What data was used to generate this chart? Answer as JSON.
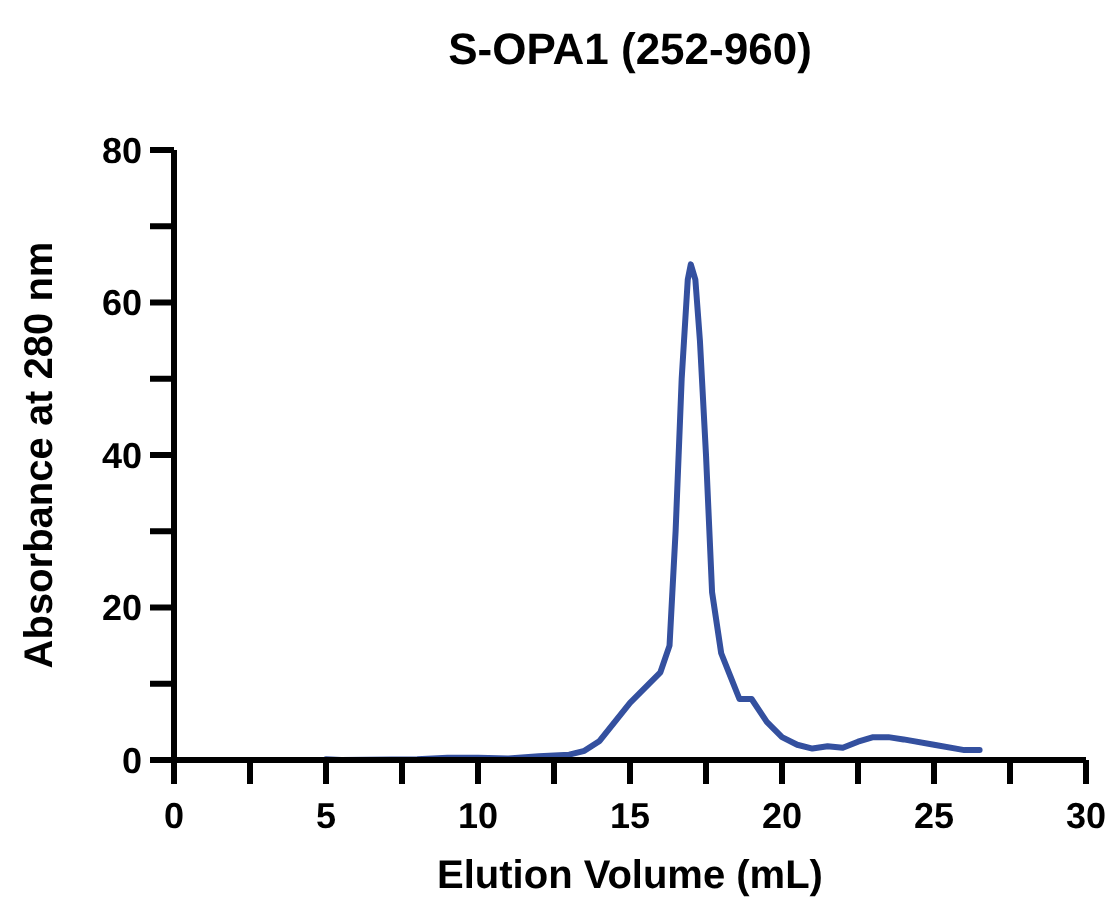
{
  "chart_data": {
    "type": "line",
    "title": "S-OPA1 (252-960)",
    "xlabel": "Elution Volume (mL)",
    "ylabel": "Absorbance at 280 nm",
    "xlim": [
      0,
      30
    ],
    "xticks": [
      0,
      {
        "value": 2.5,
        "label": null
      },
      5,
      {
        "value": 7.5,
        "label": null
      },
      10,
      {
        "value": 12.5,
        "label": null
      },
      15,
      {
        "value": 17.5,
        "label": null
      },
      20,
      {
        "value": 22.5,
        "label": null
      },
      25,
      {
        "value": 27.5,
        "label": null
      },
      30
    ],
    "ylim": [
      0,
      80
    ],
    "yticks": [
      0,
      {
        "value": 10,
        "label": null
      },
      20,
      {
        "value": 30,
        "label": null
      },
      40,
      {
        "value": 50,
        "label": null
      },
      60,
      {
        "value": 70,
        "label": null
      },
      80
    ],
    "grid": false,
    "marker": "none",
    "line_style": "solid",
    "series": [
      {
        "color": "#34509f",
        "x": [
          5,
          5.5,
          8,
          9,
          10,
          11,
          12,
          13,
          13.5,
          14,
          14.5,
          15,
          15.5,
          16,
          16.3,
          16.5,
          16.7,
          16.9,
          17,
          17.15,
          17.3,
          17.5,
          17.7,
          18,
          18.3,
          18.6,
          19,
          19.5,
          20,
          20.5,
          21,
          21.5,
          22,
          22.5,
          23,
          23.5,
          24,
          25,
          26,
          26.5
        ],
        "values": [
          0.1,
          0,
          0.1,
          0.3,
          0.3,
          0.2,
          0.5,
          0.7,
          1.2,
          2.5,
          5,
          7.5,
          9.5,
          11.5,
          15,
          30,
          50,
          63,
          65,
          63,
          55,
          40,
          22,
          14,
          11,
          8,
          8,
          5,
          3,
          2,
          1.5,
          1.8,
          1.6,
          2.4,
          3,
          3,
          2.7,
          2,
          1.3,
          1.3
        ]
      }
    ]
  }
}
